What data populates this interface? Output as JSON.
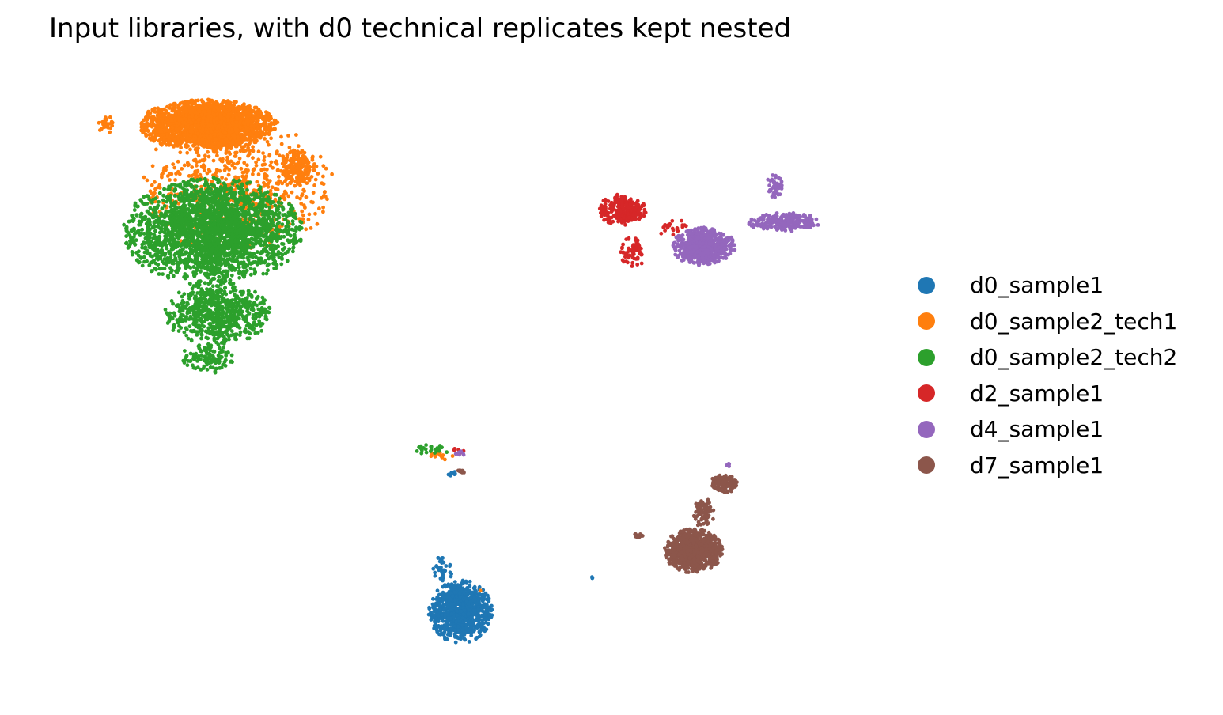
{
  "chart_data": {
    "type": "scatter",
    "title": "Input libraries, with d0 technical replicates kept nested",
    "xlabel": "",
    "ylabel": "",
    "axes_visible": false,
    "grid": false,
    "legend_position": "right",
    "series": [
      {
        "name": "d0_sample1",
        "color": "#1f77b4",
        "clusters": [
          {
            "cx": 0.38,
            "cy": -0.8,
            "rx": 0.06,
            "ry": 0.1,
            "n": 900
          },
          {
            "cx": 0.345,
            "cy": -0.66,
            "rx": 0.02,
            "ry": 0.04,
            "n": 40
          },
          {
            "cx": 0.365,
            "cy": -0.35,
            "rx": 0.01,
            "ry": 0.01,
            "n": 8
          },
          {
            "cx": 0.64,
            "cy": -0.69,
            "rx": 0.006,
            "ry": 0.006,
            "n": 3
          }
        ]
      },
      {
        "name": "d0_sample2_tech1",
        "color": "#ff7f0e",
        "clusters": [
          {
            "cx": -0.12,
            "cy": 0.8,
            "rx": 0.13,
            "ry": 0.08,
            "n": 2200
          },
          {
            "cx": -0.06,
            "cy": 0.6,
            "rx": 0.18,
            "ry": 0.22,
            "n": 700
          },
          {
            "cx": 0.06,
            "cy": 0.66,
            "rx": 0.03,
            "ry": 0.06,
            "n": 150
          },
          {
            "cx": -0.32,
            "cy": 0.8,
            "rx": 0.015,
            "ry": 0.03,
            "n": 25
          },
          {
            "cx": 0.34,
            "cy": -0.29,
            "rx": 0.025,
            "ry": 0.015,
            "n": 15
          },
          {
            "cx": 0.42,
            "cy": -0.73,
            "rx": 0.004,
            "ry": 0.004,
            "n": 1
          }
        ]
      },
      {
        "name": "d0_sample2_tech2",
        "color": "#2ca02c",
        "clusters": [
          {
            "cx": -0.11,
            "cy": 0.45,
            "rx": 0.17,
            "ry": 0.17,
            "n": 3600
          },
          {
            "cx": -0.1,
            "cy": 0.18,
            "rx": 0.1,
            "ry": 0.1,
            "n": 700
          },
          {
            "cx": -0.12,
            "cy": 0.03,
            "rx": 0.05,
            "ry": 0.05,
            "n": 120
          },
          {
            "cx": 0.32,
            "cy": -0.27,
            "rx": 0.035,
            "ry": 0.02,
            "n": 25
          }
        ]
      },
      {
        "name": "d2_sample1",
        "color": "#d62728",
        "clusters": [
          {
            "cx": 0.7,
            "cy": 0.52,
            "rx": 0.045,
            "ry": 0.05,
            "n": 280
          },
          {
            "cx": 0.72,
            "cy": 0.38,
            "rx": 0.025,
            "ry": 0.05,
            "n": 60
          },
          {
            "cx": 0.8,
            "cy": 0.46,
            "rx": 0.03,
            "ry": 0.03,
            "n": 20
          },
          {
            "cx": 0.37,
            "cy": -0.27,
            "rx": 0.02,
            "ry": 0.02,
            "n": 5
          }
        ]
      },
      {
        "name": "d4_sample1",
        "color": "#9467bd",
        "clusters": [
          {
            "cx": 0.86,
            "cy": 0.4,
            "rx": 0.06,
            "ry": 0.06,
            "n": 600
          },
          {
            "cx": 1.02,
            "cy": 0.48,
            "rx": 0.07,
            "ry": 0.03,
            "n": 280
          },
          {
            "cx": 1.0,
            "cy": 0.6,
            "rx": 0.015,
            "ry": 0.04,
            "n": 50
          },
          {
            "cx": 0.38,
            "cy": -0.28,
            "rx": 0.012,
            "ry": 0.008,
            "n": 10
          },
          {
            "cx": 0.91,
            "cy": -0.32,
            "rx": 0.004,
            "ry": 0.01,
            "n": 4
          }
        ]
      },
      {
        "name": "d7_sample1",
        "color": "#8c564b",
        "clusters": [
          {
            "cx": 0.84,
            "cy": -0.6,
            "rx": 0.055,
            "ry": 0.07,
            "n": 900
          },
          {
            "cx": 0.9,
            "cy": -0.38,
            "rx": 0.025,
            "ry": 0.03,
            "n": 150
          },
          {
            "cx": 0.86,
            "cy": -0.48,
            "rx": 0.02,
            "ry": 0.05,
            "n": 80
          },
          {
            "cx": 0.73,
            "cy": -0.55,
            "rx": 0.01,
            "ry": 0.01,
            "n": 15
          },
          {
            "cx": 0.38,
            "cy": -0.34,
            "rx": 0.012,
            "ry": 0.008,
            "n": 8
          }
        ]
      }
    ],
    "xlim": [
      -0.42,
      1.15
    ],
    "ylim": [
      -1.0,
      0.95
    ]
  }
}
